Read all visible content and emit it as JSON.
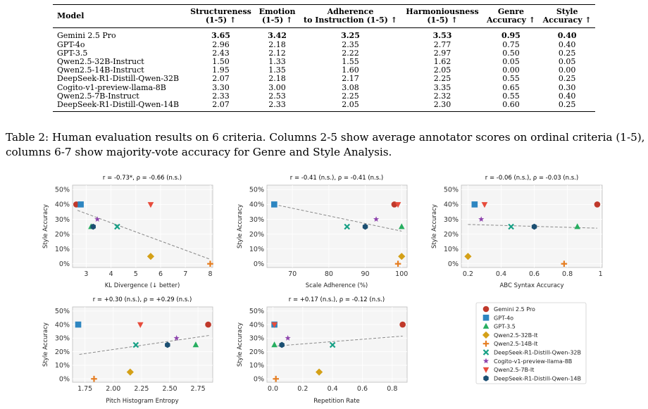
{
  "table": {
    "headers": [
      [
        "Model",
        ""
      ],
      [
        "Structureness",
        "(1-5) ↑"
      ],
      [
        "Emotion",
        "(1-5) ↑"
      ],
      [
        "Adherence",
        "to Instruction (1-5) ↑"
      ],
      [
        "Harmoniousness",
        "(1-5) ↑"
      ],
      [
        "Genre",
        "Accuracy ↑"
      ],
      [
        "Style",
        "Accuracy ↑"
      ]
    ],
    "rows": [
      [
        "Gemini 2.5 Pro",
        "3.65",
        "3.42",
        "3.25",
        "3.53",
        "0.95",
        "0.40"
      ],
      [
        "GPT-4o",
        "2.96",
        "2.18",
        "2.35",
        "2.77",
        "0.75",
        "0.40"
      ],
      [
        "GPT-3.5",
        "2.43",
        "2.12",
        "2.22",
        "2.97",
        "0.50",
        "0.25"
      ],
      [
        "Qwen2.5-32B-Instruct",
        "1.50",
        "1.33",
        "1.55",
        "1.62",
        "0.05",
        "0.05"
      ],
      [
        "Qwen2.5-14B-Instruct",
        "1.95",
        "1.35",
        "1.60",
        "2.05",
        "0.00",
        "0.00"
      ],
      [
        "DeepSeek-R1-Distill-Qwen-32B",
        "2.07",
        "2.18",
        "2.17",
        "2.25",
        "0.55",
        "0.25"
      ],
      [
        "Cogito-v1-preview-llama-8B",
        "3.30",
        "3.00",
        "3.08",
        "3.35",
        "0.65",
        "0.30"
      ],
      [
        "Qwen2.5-7B-Instruct",
        "2.33",
        "2.53",
        "2.25",
        "2.32",
        "0.55",
        "0.40"
      ],
      [
        "DeepSeek-R1-Distill-Qwen-14B",
        "2.07",
        "2.33",
        "2.05",
        "2.30",
        "0.60",
        "0.25"
      ]
    ],
    "bold_row": 0,
    "bold_cols": [
      1,
      2,
      3,
      4,
      5,
      6
    ]
  },
  "caption": "Table 2: Human evaluation results on 6 criteria. Columns 2-5 show average annotator scores on ordinal criteria (1-5), columns 6-7 show majority-vote accuracy for Genre and Style Analysis.",
  "chart_data": [
    {
      "type": "scatter",
      "title": "r = -0.73*, ρ = -0.66 (n.s.)",
      "xlabel": "KL Divergence (↓ better)",
      "ylabel": "Style Accuracy",
      "xlim": [
        2.45,
        8.1
      ],
      "ylim": [
        -2.5,
        53
      ],
      "xticks": [
        3,
        4,
        5,
        6,
        7,
        8
      ],
      "yticks": [
        0,
        10,
        20,
        30,
        40,
        50
      ],
      "ytick_suffix": "%",
      "trend": [
        [
          2.65,
          36.0
        ],
        [
          8.0,
          3.0
        ]
      ],
      "points": [
        {
          "model": "Gemini 2.5 Pro",
          "x": 2.6,
          "y": 40
        },
        {
          "model": "GPT-4o",
          "x": 2.78,
          "y": 40
        },
        {
          "model": "GPT-3.5",
          "x": 3.2,
          "y": 25
        },
        {
          "model": "Qwen2.5-32B-It",
          "x": 5.6,
          "y": 5
        },
        {
          "model": "Qwen2.5-14B-It",
          "x": 8.0,
          "y": 0
        },
        {
          "model": "DeepSeek-R1-Distill-Qwen-32B",
          "x": 4.25,
          "y": 25
        },
        {
          "model": "Cogito-v1-preview-llama-8B",
          "x": 3.45,
          "y": 30
        },
        {
          "model": "Qwen2.5-7B-It",
          "x": 5.6,
          "y": 40
        },
        {
          "model": "DeepSeek-R1-Distill-Qwen-14B",
          "x": 3.28,
          "y": 25
        }
      ]
    },
    {
      "type": "scatter",
      "title": "r = -0.41 (n.s.), ρ = -0.41 (n.s.)",
      "xlabel": "Scale Adherence (%)",
      "ylabel": "Style Accuracy",
      "xlim": [
        63,
        101.5
      ],
      "ylim": [
        -2.5,
        53
      ],
      "xticks": [
        70,
        80,
        90,
        100
      ],
      "yticks": [
        0,
        10,
        20,
        30,
        40,
        50
      ],
      "ytick_suffix": "%",
      "trend": [
        [
          65,
          40.0
        ],
        [
          100,
          22.0
        ]
      ],
      "points": [
        {
          "model": "Gemini 2.5 Pro",
          "x": 98,
          "y": 40
        },
        {
          "model": "GPT-4o",
          "x": 65,
          "y": 40
        },
        {
          "model": "GPT-3.5",
          "x": 100,
          "y": 25
        },
        {
          "model": "Qwen2.5-32B-It",
          "x": 100,
          "y": 5
        },
        {
          "model": "Qwen2.5-14B-It",
          "x": 99,
          "y": 0
        },
        {
          "model": "DeepSeek-R1-Distill-Qwen-32B",
          "x": 85,
          "y": 25
        },
        {
          "model": "Cogito-v1-preview-llama-8B",
          "x": 93,
          "y": 30
        },
        {
          "model": "Qwen2.5-7B-It",
          "x": 99,
          "y": 40
        },
        {
          "model": "DeepSeek-R1-Distill-Qwen-14B",
          "x": 90,
          "y": 25
        }
      ]
    },
    {
      "type": "scatter",
      "title": "r = -0.06 (n.s.), ρ = -0.03 (n.s.)",
      "xlabel": "ABC Syntax Accuracy",
      "ylabel": "Style Accuracy",
      "xlim": [
        0.16,
        1.01
      ],
      "ylim": [
        -2.5,
        53
      ],
      "xticks": [
        0.2,
        0.4,
        0.6,
        0.8,
        1.0
      ],
      "yticks": [
        0,
        10,
        20,
        30,
        40,
        50
      ],
      "ytick_suffix": "%",
      "trend": [
        [
          0.2,
          26.5
        ],
        [
          0.98,
          24.0
        ]
      ],
      "points": [
        {
          "model": "Gemini 2.5 Pro",
          "x": 0.98,
          "y": 40
        },
        {
          "model": "GPT-4o",
          "x": 0.24,
          "y": 40
        },
        {
          "model": "GPT-3.5",
          "x": 0.86,
          "y": 25
        },
        {
          "model": "Qwen2.5-32B-It",
          "x": 0.2,
          "y": 5
        },
        {
          "model": "Qwen2.5-14B-It",
          "x": 0.78,
          "y": 0
        },
        {
          "model": "DeepSeek-R1-Distill-Qwen-32B",
          "x": 0.46,
          "y": 25
        },
        {
          "model": "Cogito-v1-preview-llama-8B",
          "x": 0.28,
          "y": 30
        },
        {
          "model": "Qwen2.5-7B-It",
          "x": 0.3,
          "y": 40
        },
        {
          "model": "DeepSeek-R1-Distill-Qwen-14B",
          "x": 0.6,
          "y": 25
        }
      ]
    },
    {
      "type": "scatter",
      "title": "r = +0.30 (n.s.), ρ = +0.29 (n.s.)",
      "xlabel": "Pitch Histogram Entropy",
      "ylabel": "Style Accuracy",
      "xlim": [
        1.64,
        2.88
      ],
      "ylim": [
        -2.5,
        53
      ],
      "xticks": [
        1.75,
        2.0,
        2.25,
        2.5,
        2.75
      ],
      "xtick_labels": [
        "1.75",
        "2.00",
        "2.25",
        "2.50",
        "2.75"
      ],
      "yticks": [
        0,
        10,
        20,
        30,
        40,
        50
      ],
      "ytick_suffix": "%",
      "trend": [
        [
          1.7,
          18.0
        ],
        [
          2.85,
          32.0
        ]
      ],
      "points": [
        {
          "model": "Gemini 2.5 Pro",
          "x": 2.84,
          "y": 40
        },
        {
          "model": "GPT-4o",
          "x": 1.69,
          "y": 40
        },
        {
          "model": "GPT-3.5",
          "x": 2.73,
          "y": 25
        },
        {
          "model": "Qwen2.5-32B-It",
          "x": 2.15,
          "y": 5
        },
        {
          "model": "Qwen2.5-14B-It",
          "x": 1.83,
          "y": 0
        },
        {
          "model": "DeepSeek-R1-Distill-Qwen-32B",
          "x": 2.2,
          "y": 25
        },
        {
          "model": "Cogito-v1-preview-llama-8B",
          "x": 2.56,
          "y": 30
        },
        {
          "model": "Qwen2.5-7B-It",
          "x": 2.24,
          "y": 40
        },
        {
          "model": "DeepSeek-R1-Distill-Qwen-14B",
          "x": 2.48,
          "y": 25
        }
      ]
    },
    {
      "type": "scatter",
      "title": "r = +0.17 (n.s.), ρ = -0.12 (n.s.)",
      "xlabel": "Repetition Rate",
      "ylabel": "Style Accuracy",
      "xlim": [
        -0.04,
        0.9
      ],
      "ylim": [
        -2.5,
        53
      ],
      "xticks": [
        0.0,
        0.2,
        0.4,
        0.6,
        0.8
      ],
      "xtick_labels": [
        "0.0",
        "0.2",
        "0.4",
        "0.6",
        "0.8"
      ],
      "yticks": [
        0,
        10,
        20,
        30,
        40,
        50
      ],
      "ytick_suffix": "%",
      "trend": [
        [
          0.0,
          24.0
        ],
        [
          0.87,
          31.5
        ]
      ],
      "points": [
        {
          "model": "Gemini 2.5 Pro",
          "x": 0.87,
          "y": 40
        },
        {
          "model": "GPT-4o",
          "x": 0.01,
          "y": 40
        },
        {
          "model": "GPT-3.5",
          "x": 0.01,
          "y": 25
        },
        {
          "model": "Qwen2.5-32B-It",
          "x": 0.31,
          "y": 5
        },
        {
          "model": "Qwen2.5-14B-It",
          "x": 0.02,
          "y": 0
        },
        {
          "model": "DeepSeek-R1-Distill-Qwen-32B",
          "x": 0.4,
          "y": 25
        },
        {
          "model": "Cogito-v1-preview-llama-8B",
          "x": 0.1,
          "y": 30
        },
        {
          "model": "Qwen2.5-7B-It",
          "x": 0.01,
          "y": 40
        },
        {
          "model": "DeepSeek-R1-Distill-Qwen-14B",
          "x": 0.06,
          "y": 25
        }
      ]
    }
  ],
  "legend": {
    "entries": [
      {
        "label": "Gemini 2.5 Pro",
        "marker": "circle",
        "color": "#c0392b"
      },
      {
        "label": "GPT-4o",
        "marker": "square",
        "color": "#2e86c1"
      },
      {
        "label": "GPT-3.5",
        "marker": "triangle-up",
        "color": "#27ae60"
      },
      {
        "label": "Qwen2.5-32B-It",
        "marker": "diamond",
        "color": "#d4a017"
      },
      {
        "label": "Qwen2.5-14B-It",
        "marker": "plus",
        "color": "#e67e22"
      },
      {
        "label": "DeepSeek-R1-Distill-Qwen-32B",
        "marker": "x",
        "color": "#16a085"
      },
      {
        "label": "Cogito-v1-preview-llama-8B",
        "marker": "star",
        "color": "#8e44ad"
      },
      {
        "label": "Qwen2.5-7B-It",
        "marker": "triangle-down",
        "color": "#e74c3c"
      },
      {
        "label": "DeepSeek-R1-Distill-Qwen-14B",
        "marker": "hexagon",
        "color": "#1b4f72"
      }
    ]
  }
}
